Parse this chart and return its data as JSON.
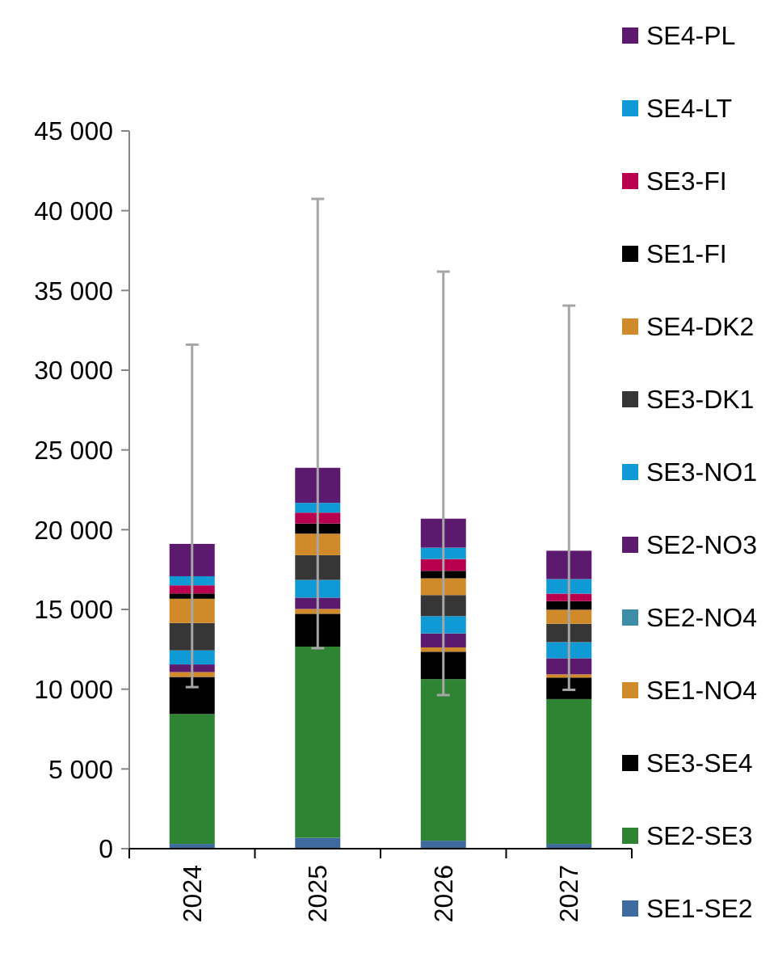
{
  "chart_data": {
    "type": "bar",
    "stacked": true,
    "categories": [
      "2024",
      "2025",
      "2026",
      "2027"
    ],
    "ylim": [
      0,
      45000
    ],
    "yticks": [
      {
        "value": 0,
        "label": "0"
      },
      {
        "value": 5000,
        "label": "5 000"
      },
      {
        "value": 10000,
        "label": "10 000"
      },
      {
        "value": 15000,
        "label": "15 000"
      },
      {
        "value": 20000,
        "label": "20 000"
      },
      {
        "value": 25000,
        "label": "25 000"
      },
      {
        "value": 30000,
        "label": "30 000"
      },
      {
        "value": 35000,
        "label": "35 000"
      },
      {
        "value": 40000,
        "label": "40 000"
      },
      {
        "value": 45000,
        "label": "45 000"
      }
    ],
    "grid": false,
    "legend": "right",
    "series": [
      {
        "name": "SE1-SE2",
        "color": "#3e6aa0",
        "values": [
          300,
          680,
          500,
          300
        ]
      },
      {
        "name": "SE2-SE3",
        "color": "#2e8433",
        "values": [
          8140,
          11990,
          10130,
          9080
        ]
      },
      {
        "name": "SE3-SE4",
        "color": "#000000",
        "values": [
          2330,
          2060,
          1720,
          1350
        ]
      },
      {
        "name": "SE1-NO4",
        "color": "#d08a2a",
        "values": [
          300,
          300,
          270,
          200
        ]
      },
      {
        "name": "SE2-NO4",
        "color": "#3b8ea5",
        "values": [
          0,
          0,
          0,
          0
        ]
      },
      {
        "name": "SE2-NO3",
        "color": "#5b1a6e",
        "values": [
          480,
          710,
          880,
          1010
        ]
      },
      {
        "name": "SE3-NO1",
        "color": "#0f9ad6",
        "values": [
          880,
          1110,
          1080,
          1010
        ]
      },
      {
        "name": "SE3-DK1",
        "color": "#363636",
        "values": [
          1720,
          1550,
          1320,
          1150
        ]
      },
      {
        "name": "SE4-DK2",
        "color": "#d08a2a",
        "values": [
          1520,
          1350,
          1050,
          880
        ]
      },
      {
        "name": "SE1-FI",
        "color": "#000000",
        "values": [
          330,
          640,
          470,
          540
        ]
      },
      {
        "name": "SE3-FI",
        "color": "#b8004f",
        "values": [
          510,
          680,
          740,
          470
        ]
      },
      {
        "name": "SE4-LT",
        "color": "#0f9ad6",
        "values": [
          570,
          610,
          710,
          910
        ]
      },
      {
        "name": "SE4-PL",
        "color": "#5b1a6e",
        "values": [
          2030,
          2200,
          1820,
          1780
        ],
        "errors": [
          [
            10130,
            31600
          ],
          [
            12570,
            40740
          ],
          [
            9630,
            36180
          ],
          [
            9960,
            34050
          ]
        ]
      }
    ]
  }
}
